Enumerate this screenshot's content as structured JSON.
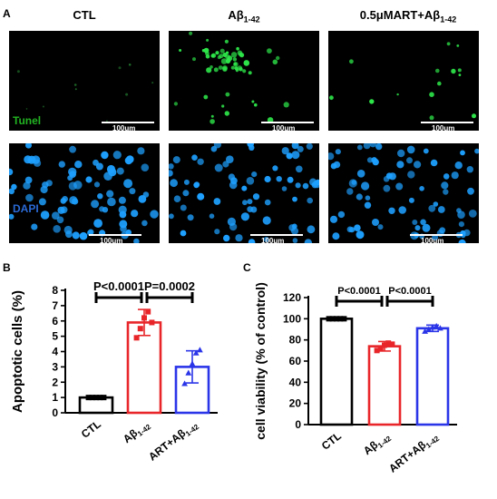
{
  "panel_a": {
    "letter": "A",
    "columns": [
      {
        "title": "CTL"
      },
      {
        "title": "Aβ",
        "sub": "1-42"
      },
      {
        "title": "0.5μMART+Aβ",
        "sub": "1-42"
      }
    ],
    "rows": [
      {
        "label": "Tunel",
        "label_color": "#22b422",
        "cell_color": "#2ee84a"
      },
      {
        "label": "DAPI",
        "label_color": "#2a6ad6",
        "cell_color": "#1ea0ff"
      }
    ],
    "scale_label": "100um"
  },
  "panel_b": {
    "letter": "B",
    "chart_data": {
      "type": "bar",
      "categories": [
        {
          "main": "CTL",
          "sub": ""
        },
        {
          "main": "Aβ",
          "sub": "1-42"
        },
        {
          "main": "ART+Aβ",
          "sub": "1-42"
        }
      ],
      "values": [
        1.0,
        5.9,
        3.0
      ],
      "errors": [
        0.0,
        0.85,
        1.05
      ],
      "points": [
        [
          1.0,
          1.0,
          1.0,
          1.0,
          1.0
        ],
        [
          4.9,
          5.5,
          6.2,
          6.6,
          5.9
        ],
        [
          1.9,
          2.6,
          3.2,
          3.9,
          4.1
        ]
      ],
      "colors": [
        "#000000",
        "#e8262a",
        "#2b35e8"
      ],
      "ylabel": "Apoptotic cells (%)",
      "ylim": [
        0,
        8
      ],
      "yticks": [
        0,
        1,
        2,
        3,
        4,
        5,
        6,
        7,
        8
      ],
      "comparisons": [
        {
          "from": 0,
          "to": 1,
          "label": "P<0.0001"
        },
        {
          "from": 1,
          "to": 2,
          "label": "P=0.0002"
        }
      ]
    }
  },
  "panel_c": {
    "letter": "C",
    "chart_data": {
      "type": "bar",
      "categories": [
        {
          "main": "CTL",
          "sub": ""
        },
        {
          "main": "Aβ",
          "sub": "1-42"
        },
        {
          "main": "ART+Aβ",
          "sub": "1-42"
        }
      ],
      "values": [
        100,
        74,
        91
      ],
      "errors": [
        0.5,
        4.5,
        3.0
      ],
      "points": [
        [
          100,
          100,
          100,
          100,
          100
        ],
        [
          70,
          72,
          75,
          77,
          76
        ],
        [
          88,
          90,
          92,
          93,
          91
        ]
      ],
      "colors": [
        "#000000",
        "#e8262a",
        "#2b35e8"
      ],
      "ylabel": "cell viability (% of control)",
      "ylim": [
        0,
        120
      ],
      "yticks": [
        0,
        20,
        40,
        60,
        80,
        100,
        120
      ],
      "comparisons": [
        {
          "from": 0,
          "to": 1,
          "label": "P<0.0001"
        },
        {
          "from": 1,
          "to": 2,
          "label": "P<0.0001"
        }
      ]
    }
  }
}
